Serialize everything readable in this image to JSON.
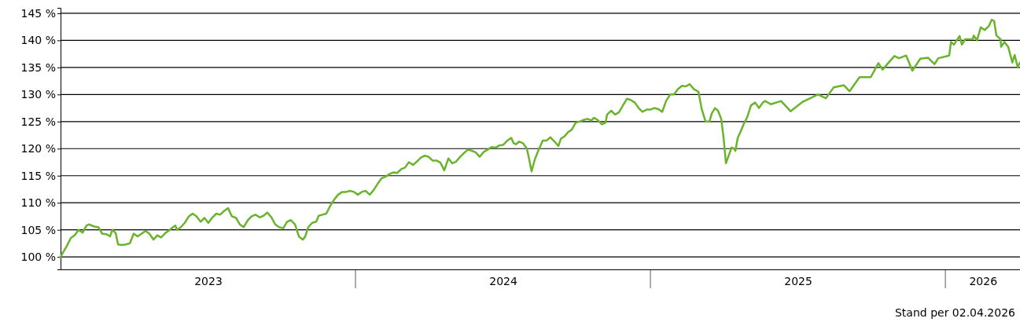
{
  "chart_data": {
    "type": "line",
    "xlim": [
      2023,
      2026.253
    ],
    "ylim": [
      97.7,
      146
    ],
    "xticks": [
      {
        "value": 2023.5,
        "label": "2023"
      },
      {
        "value": 2024.5,
        "label": "2024"
      },
      {
        "value": 2025.5,
        "label": "2025"
      },
      {
        "value": 2026.127,
        "label": "2026"
      }
    ],
    "yticks": [
      {
        "value": 100,
        "label": "100 %"
      },
      {
        "value": 105,
        "label": "105 %"
      },
      {
        "value": 110,
        "label": "110 %"
      },
      {
        "value": 115,
        "label": "115 %"
      },
      {
        "value": 120,
        "label": "120 %"
      },
      {
        "value": 125,
        "label": "125 %"
      },
      {
        "value": 130,
        "label": "130 %"
      },
      {
        "value": 135,
        "label": "135 %"
      },
      {
        "value": 140,
        "label": "140 %"
      },
      {
        "value": 145,
        "label": "145 %"
      }
    ],
    "grid": "y",
    "marker": "none",
    "line_style": "solid",
    "annotations": [
      "Stand per 02.04.2026"
    ],
    "x": [
      2023.0,
      2023.008,
      2023.021,
      2023.035,
      2023.048,
      2023.061,
      2023.075,
      2023.088,
      2023.096,
      2023.115,
      2023.128,
      2023.141,
      2023.155,
      2023.168,
      2023.176,
      2023.187,
      2023.195,
      2023.208,
      2023.221,
      2023.235,
      2023.248,
      2023.261,
      2023.275,
      2023.288,
      2023.301,
      2023.315,
      2023.328,
      2023.341,
      2023.355,
      2023.368,
      2023.381,
      2023.389,
      2023.395,
      2023.408,
      2023.421,
      2023.435,
      2023.448,
      2023.461,
      2023.475,
      2023.488,
      2023.501,
      2023.515,
      2023.528,
      2023.541,
      2023.555,
      2023.568,
      2023.581,
      2023.595,
      2023.608,
      2023.621,
      2023.635,
      2023.648,
      2023.661,
      2023.675,
      2023.688,
      2023.701,
      2023.715,
      2023.728,
      2023.741,
      2023.755,
      2023.768,
      2023.781,
      2023.795,
      2023.808,
      2023.821,
      2023.829,
      2023.84,
      2023.853,
      2023.867,
      2023.875,
      2023.888,
      2023.901,
      2023.915,
      2023.928,
      2023.941,
      2023.955,
      2023.968,
      2023.981,
      2023.995,
      2024.008,
      2024.021,
      2024.035,
      2024.048,
      2024.061,
      2024.075,
      2024.088,
      2024.101,
      2024.115,
      2024.128,
      2024.141,
      2024.155,
      2024.168,
      2024.181,
      2024.195,
      2024.208,
      2024.221,
      2024.235,
      2024.248,
      2024.261,
      2024.275,
      2024.288,
      2024.301,
      2024.315,
      2024.328,
      2024.341,
      2024.355,
      2024.368,
      2024.381,
      2024.395,
      2024.408,
      2024.421,
      2024.435,
      2024.448,
      2024.461,
      2024.475,
      2024.488,
      2024.501,
      2024.515,
      2024.528,
      2024.536,
      2024.544,
      2024.555,
      2024.568,
      2024.581,
      2024.589,
      2024.597,
      2024.608,
      2024.621,
      2024.635,
      2024.648,
      2024.661,
      2024.675,
      2024.688,
      2024.696,
      2024.709,
      2024.72,
      2024.733,
      2024.747,
      2024.76,
      2024.773,
      2024.787,
      2024.8,
      2024.808,
      2024.821,
      2024.835,
      2024.848,
      2024.853,
      2024.867,
      2024.88,
      2024.893,
      2024.907,
      2024.92,
      2024.933,
      2024.947,
      2024.96,
      2024.973,
      2024.987,
      2025.0,
      2025.013,
      2025.027,
      2025.04,
      2025.053,
      2025.067,
      2025.08,
      2025.093,
      2025.107,
      2025.12,
      2025.133,
      2025.147,
      2025.163,
      2025.173,
      2025.187,
      2025.2,
      2025.208,
      2025.219,
      2025.229,
      2025.24,
      2025.248,
      2025.256,
      2025.264,
      2025.275,
      2025.283,
      2025.288,
      2025.296,
      2025.307,
      2025.315,
      2025.328,
      2025.341,
      2025.355,
      2025.368,
      2025.381,
      2025.389,
      2025.408,
      2025.443,
      2025.475,
      2025.515,
      2025.568,
      2025.595,
      2025.621,
      2025.656,
      2025.675,
      2025.709,
      2025.747,
      2025.773,
      2025.787,
      2025.827,
      2025.843,
      2025.867,
      2025.888,
      2025.915,
      2025.941,
      2025.963,
      2025.976,
      2026.013,
      2026.019,
      2026.029,
      2026.048,
      2026.056,
      2026.067,
      2026.093,
      2026.096,
      2026.107,
      2026.12,
      2026.133,
      2026.147,
      2026.157,
      2026.165,
      2026.173,
      2026.187,
      2026.189,
      2026.2,
      2026.213,
      2026.227,
      2026.235,
      2026.245,
      2026.253
    ],
    "series": [
      {
        "color": "#6ab42d",
        "values": [
          100,
          100.8,
          102,
          103.5,
          104,
          105,
          104.5,
          105.8,
          106,
          105.6,
          105.5,
          104.3,
          104.2,
          103.8,
          105,
          104.4,
          102.3,
          102.2,
          102.3,
          102.5,
          104.3,
          103.8,
          104.3,
          104.8,
          104.3,
          103.2,
          104,
          103.6,
          104.4,
          104.9,
          105.5,
          105.8,
          105,
          105.5,
          106.3,
          107.5,
          108,
          107.5,
          106.5,
          107.2,
          106.3,
          107.3,
          108,
          107.8,
          108.5,
          109,
          107.5,
          107.2,
          106,
          105.5,
          106.8,
          107.5,
          107.8,
          107.3,
          107.6,
          108.2,
          107.3,
          106,
          105.5,
          105.3,
          106.5,
          106.8,
          106,
          103.8,
          103.2,
          103.7,
          105.5,
          106.3,
          106.5,
          107.6,
          107.8,
          108,
          109.5,
          110.6,
          111.5,
          112,
          112,
          112.2,
          112,
          111.5,
          112,
          112.2,
          111.5,
          112.3,
          113.5,
          114.5,
          114.8,
          115.3,
          115.6,
          115.5,
          116.2,
          116.5,
          117.5,
          117,
          117.6,
          118.3,
          118.7,
          118.5,
          117.8,
          117.8,
          117.4,
          116,
          118.2,
          117.3,
          117.6,
          118.5,
          119.2,
          119.8,
          119.6,
          119.3,
          118.5,
          119.4,
          119.8,
          120.3,
          120.2,
          120.6,
          120.7,
          121.5,
          122,
          121,
          120.8,
          121.3,
          121,
          120,
          118,
          115.8,
          118,
          119.8,
          121.5,
          121.5,
          122.1,
          121.3,
          120.5,
          121.8,
          122.3,
          123,
          123.5,
          124.8,
          125,
          125.3,
          125.5,
          125.2,
          125.7,
          125.3,
          124.5,
          124.8,
          126.3,
          127,
          126.3,
          126.7,
          128,
          129.2,
          129,
          128.5,
          127.5,
          126.8,
          127.2,
          127.2,
          127.5,
          127.3,
          126.8,
          128.8,
          130,
          130,
          131,
          131.6,
          131.5,
          131.9,
          131,
          130.5,
          127.5,
          125,
          125,
          126.5,
          127.5,
          127,
          125.5,
          122,
          117.3,
          118.5,
          120.2,
          120,
          119.6,
          122,
          123.3,
          124.4,
          125.8,
          128,
          128.5,
          127.5,
          128.5,
          128.8,
          128.2,
          128.8,
          126.9,
          128.6,
          130,
          129.3,
          131.3,
          131.7,
          130.6,
          133.2,
          133.2,
          135.8,
          134.6,
          137.1,
          136.7,
          137.2,
          134.4,
          136.6,
          136.8,
          135.6,
          136.7,
          137.2,
          139.7,
          139.2,
          140.8,
          139.2,
          140.2,
          140.2,
          140.9,
          140,
          142.4,
          141.9,
          142.6,
          143.8,
          143.6,
          140.9,
          140.2,
          138.8,
          139.7,
          138.8,
          135.9,
          137.3,
          135.1,
          135.9
        ]
      }
    ]
  }
}
